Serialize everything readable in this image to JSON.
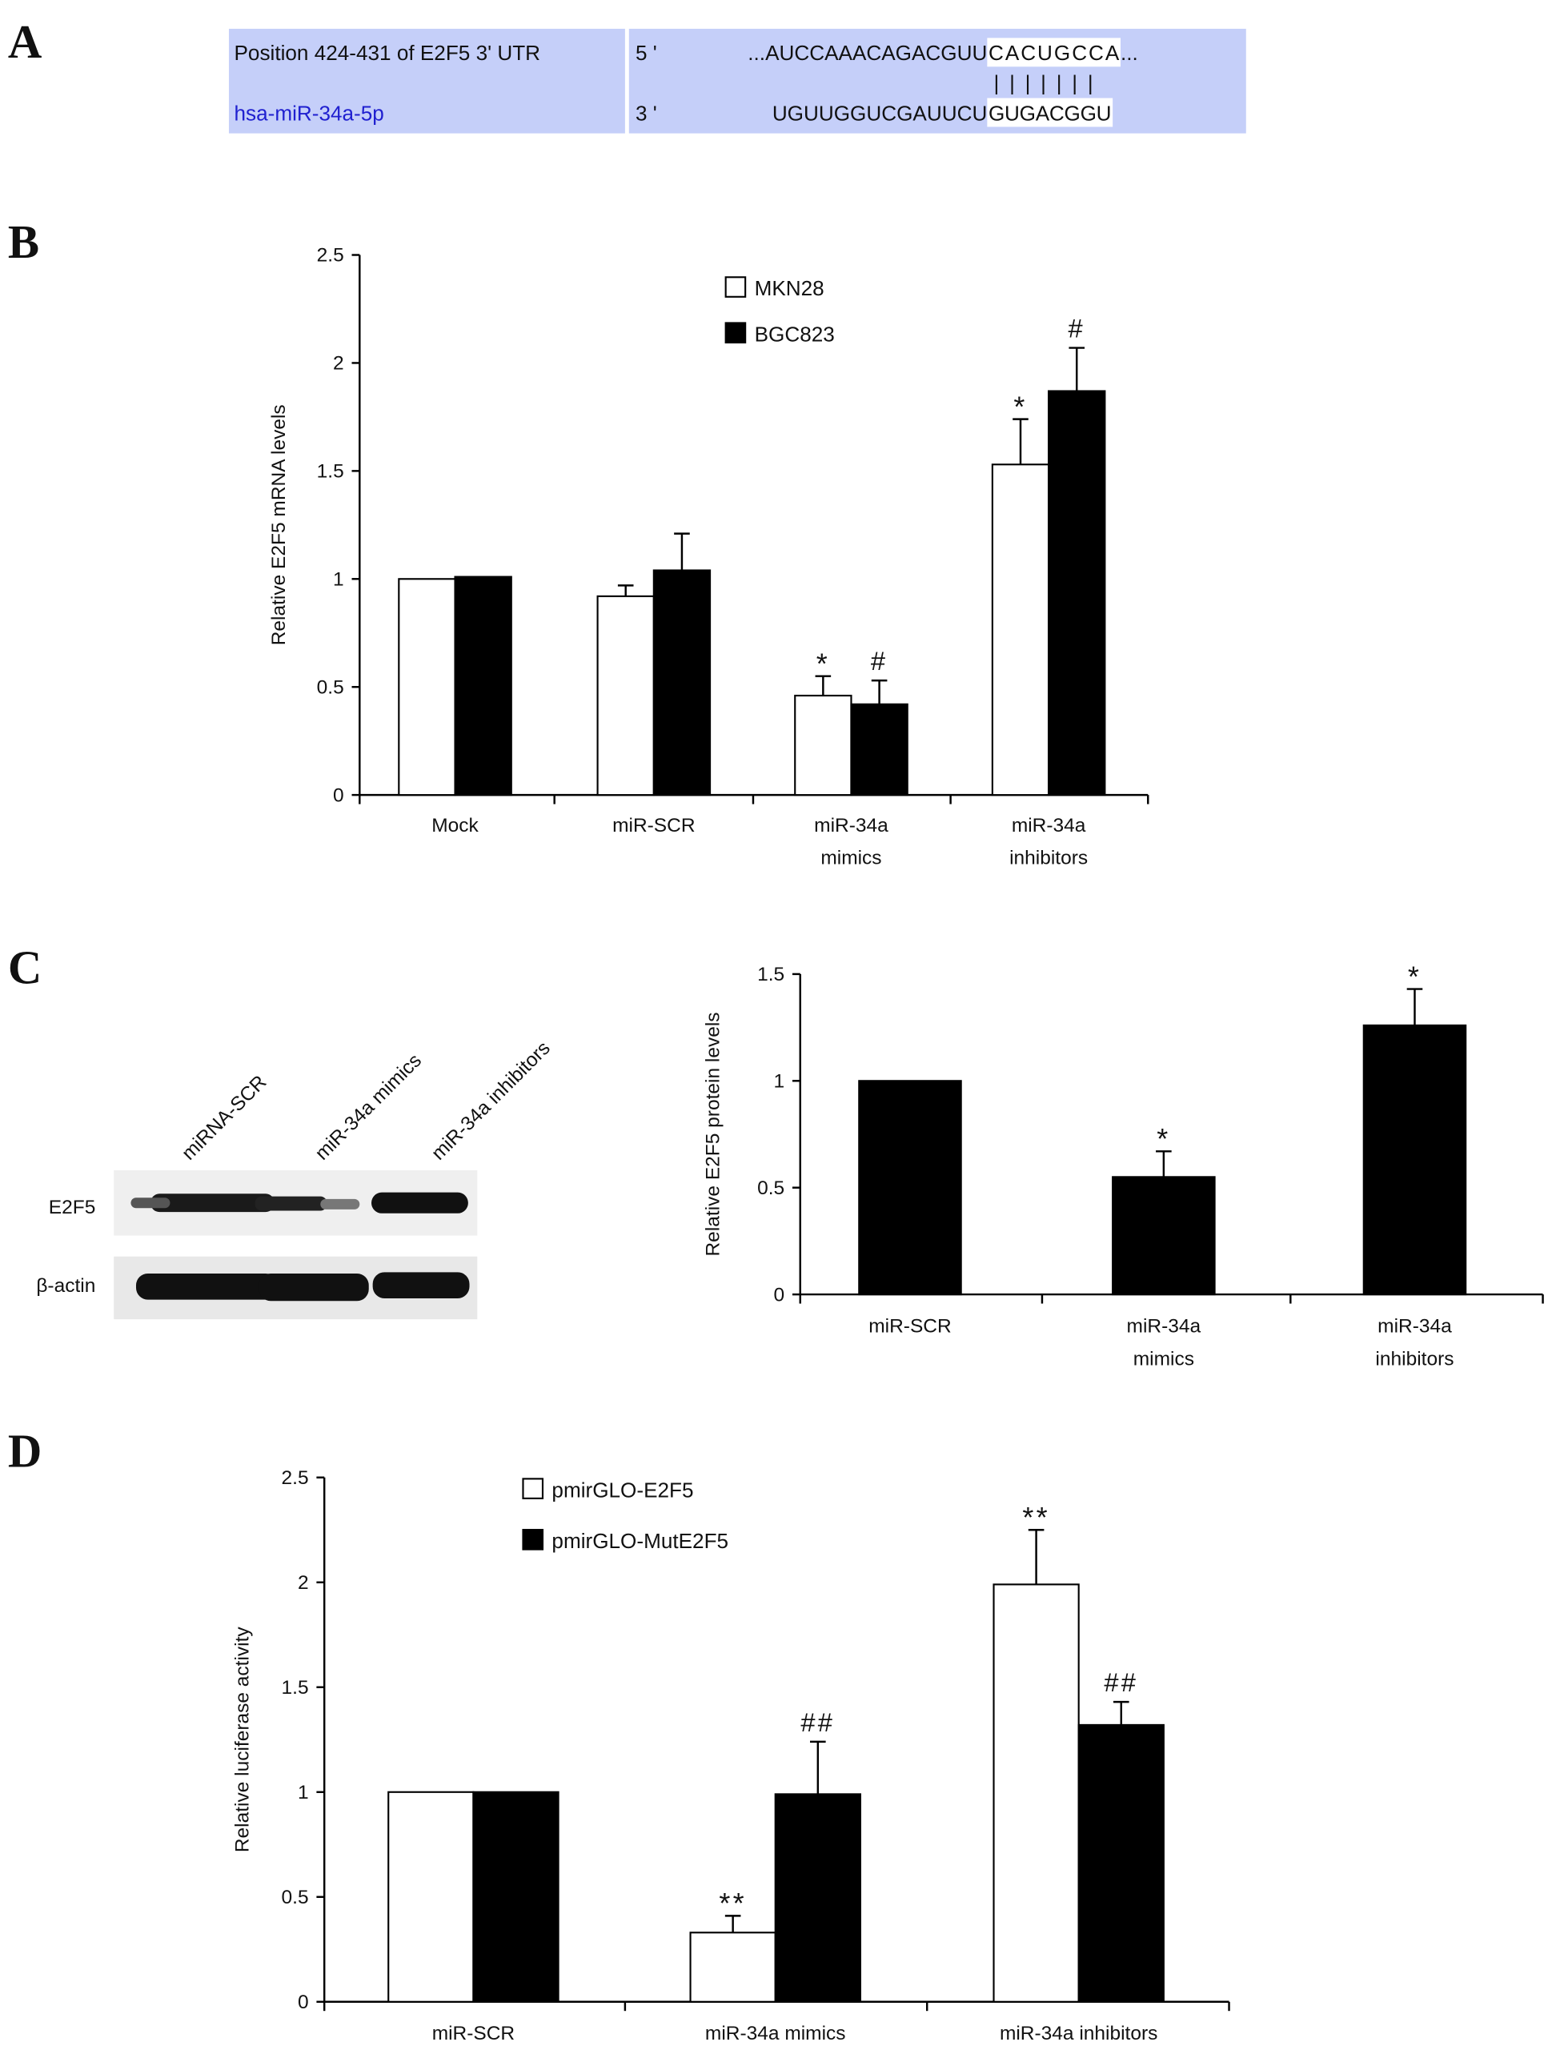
{
  "panel_labels": {
    "a": "A",
    "b": "B",
    "c": "C",
    "d": "D"
  },
  "panel_a": {
    "row1_label": "Position 424-431 of E2F5 3' UTR",
    "row2_label": "hsa-miR-34a-5p",
    "row1_end": "5 '",
    "row2_end": "3 '",
    "utr_prefix": "...AUCCAAACAGACGUU",
    "utr_seed": "CACUGCCA",
    "utr_suffix": "...",
    "mirna_prefix": "UGUUGGUCGAUUCU",
    "mirna_seed": "GUGACGGU",
    "pairing": "| | | | | | |",
    "box_color": "#c5cff9",
    "mirna_color": "#2020d0"
  },
  "western_blot": {
    "lanes": [
      "miRNA-SCR",
      "miR-34a mimics",
      "miR-34a inhibitors"
    ],
    "rows": [
      "E2F5",
      "β-actin"
    ]
  },
  "chart_data": [
    {
      "type": "bar",
      "panel": "B",
      "title": "",
      "xlabel": "",
      "ylabel": "Relative E2F5 mRNA levels",
      "ylim": [
        0,
        2.5
      ],
      "yticks": [
        "0",
        "0.5",
        "1",
        "1.5",
        "2",
        "2.5"
      ],
      "categories": [
        [
          "Mock"
        ],
        [
          "miR-SCR"
        ],
        [
          "miR-34a",
          "mimics"
        ],
        [
          "miR-34a",
          "inhibitors"
        ]
      ],
      "legend_position": "top-center",
      "series": [
        {
          "name": "MKN28",
          "color": "#ffffff",
          "values": [
            1.0,
            0.92,
            0.46,
            1.53
          ],
          "errors": [
            0.0,
            0.05,
            0.09,
            0.21
          ],
          "annotations": [
            "",
            "",
            "*",
            "*"
          ]
        },
        {
          "name": "BGC823",
          "color": "#000000",
          "values": [
            1.01,
            1.04,
            0.42,
            1.87
          ],
          "errors": [
            0.0,
            0.17,
            0.11,
            0.2
          ],
          "annotations": [
            "",
            "",
            "#",
            "#"
          ]
        }
      ]
    },
    {
      "type": "bar",
      "panel": "C",
      "title": "",
      "xlabel": "",
      "ylabel": "Relative E2F5 protein levels",
      "ylim": [
        0,
        1.5
      ],
      "yticks": [
        "0",
        "0.5",
        "1",
        "1.5"
      ],
      "categories": [
        [
          "miR-SCR"
        ],
        [
          "miR-34a",
          "mimics"
        ],
        [
          "miR-34a",
          "inhibitors"
        ]
      ],
      "series": [
        {
          "name": "E2F5",
          "color": "#000000",
          "values": [
            1.0,
            0.55,
            1.26
          ],
          "errors": [
            0.0,
            0.12,
            0.17
          ],
          "annotations": [
            "",
            "*",
            "*"
          ]
        }
      ]
    },
    {
      "type": "bar",
      "panel": "D",
      "title": "",
      "xlabel": "",
      "ylabel": "Relative luciferase activity",
      "ylim": [
        0,
        2.5
      ],
      "yticks": [
        "0",
        "0.5",
        "1",
        "1.5",
        "2",
        "2.5"
      ],
      "categories": [
        [
          "miR-SCR"
        ],
        [
          "miR-34a mimics"
        ],
        [
          "miR-34a inhibitors"
        ]
      ],
      "legend_position": "top-center",
      "series": [
        {
          "name": "pmirGLO-E2F5",
          "color": "#ffffff",
          "values": [
            1.0,
            0.33,
            1.99
          ],
          "errors": [
            0.0,
            0.08,
            0.26
          ],
          "annotations": [
            "",
            "**",
            "**"
          ]
        },
        {
          "name": "pmirGLO-MutE2F5",
          "color": "#000000",
          "values": [
            1.0,
            0.99,
            1.32
          ],
          "errors": [
            0.0,
            0.25,
            0.11
          ],
          "annotations": [
            "",
            "##",
            "##"
          ]
        }
      ]
    }
  ]
}
